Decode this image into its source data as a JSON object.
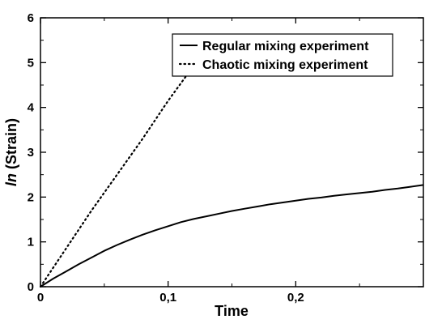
{
  "chart_data": {
    "type": "line",
    "title": "",
    "xlabel": "Time",
    "ylabel_italic": "ln",
    "ylabel_rest": " (Strain)",
    "xlim": [
      0,
      0.3
    ],
    "ylim": [
      0,
      6
    ],
    "x_ticks": [
      0,
      0.1,
      0.2
    ],
    "x_tick_labels": [
      "0",
      "0,1",
      "0,2"
    ],
    "y_ticks": [
      0,
      1,
      2,
      3,
      4,
      5,
      6
    ],
    "y_tick_labels": [
      "0",
      "1",
      "2",
      "3",
      "4",
      "5",
      "6"
    ],
    "grid": false,
    "legend_position": "top-right",
    "series": [
      {
        "name": "Regular mixing experiment",
        "style": "solid",
        "x": [
          0,
          0.01,
          0.02,
          0.03,
          0.04,
          0.05,
          0.06,
          0.07,
          0.08,
          0.09,
          0.1,
          0.11,
          0.12,
          0.13,
          0.14,
          0.15,
          0.16,
          0.17,
          0.18,
          0.19,
          0.2,
          0.21,
          0.22,
          0.23,
          0.24,
          0.25,
          0.26,
          0.27,
          0.28,
          0.29,
          0.3
        ],
        "y": [
          0,
          0.18,
          0.34,
          0.5,
          0.65,
          0.8,
          0.93,
          1.05,
          1.16,
          1.26,
          1.35,
          1.44,
          1.51,
          1.57,
          1.63,
          1.69,
          1.74,
          1.79,
          1.84,
          1.88,
          1.92,
          1.96,
          1.99,
          2.03,
          2.06,
          2.09,
          2.12,
          2.16,
          2.19,
          2.23,
          2.27
        ]
      },
      {
        "name": "Chaotic mixing experiment",
        "style": "dotted",
        "x": [
          0,
          0.02,
          0.04,
          0.06,
          0.08,
          0.1,
          0.118
        ],
        "y": [
          0,
          0.85,
          1.7,
          2.5,
          3.3,
          4.15,
          4.85
        ]
      }
    ]
  }
}
